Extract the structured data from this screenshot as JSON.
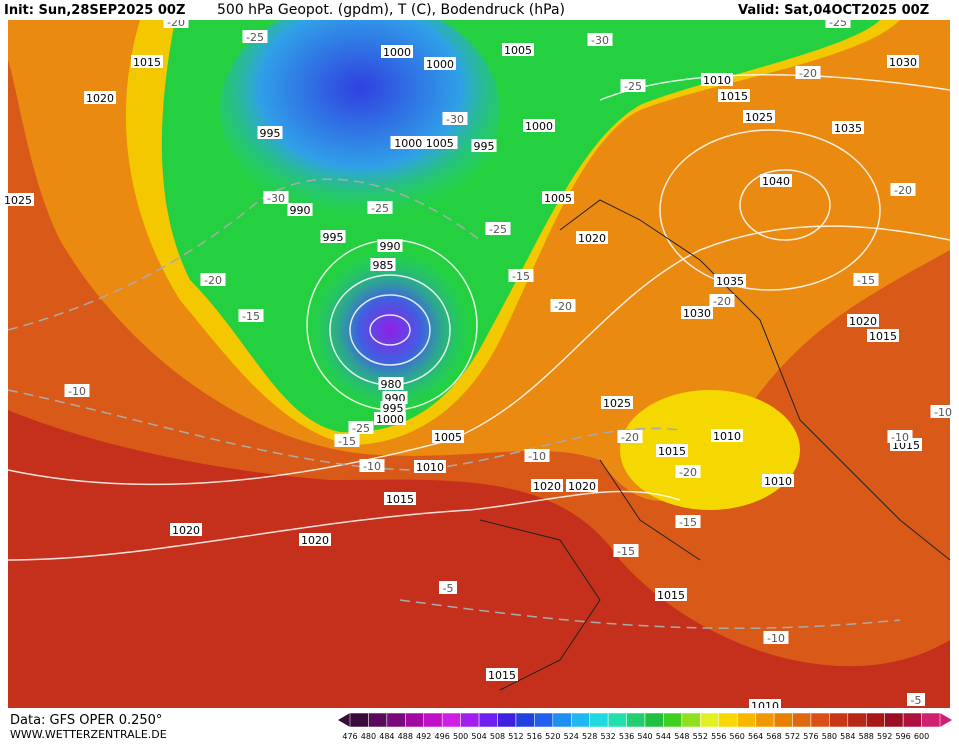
{
  "header": {
    "init": "Init: Sun,28SEP2025 00Z",
    "title": "500 hPa Geopot. (gpdm), T (C), Bodendruck (hPa)",
    "valid": "Valid: Sat,04OCT2025 00Z"
  },
  "footer": {
    "data": "Data: GFS OPER 0.250°",
    "site": "WWW.WETTERZENTRALE.DE"
  },
  "isobar_labels": [
    "1015",
    "1020",
    "1025",
    "995",
    "990",
    "995",
    "1000",
    "1000",
    "1005",
    "1010",
    "1015",
    "1025",
    "1035",
    "1030",
    "1040",
    "1000",
    "995",
    "1000 1005",
    "1005",
    "1020",
    "990",
    "985",
    "1035",
    "1030",
    "1020",
    "1015",
    "980",
    "990",
    "995",
    "1000",
    "1005",
    "1010",
    "1015",
    "1020",
    "1020",
    "1020",
    "1020",
    "1025",
    "1015",
    "1010",
    "1010",
    "1015",
    "1015",
    "1015",
    "1010"
  ],
  "temperature_labels": [
    "-20",
    "-25",
    "-30",
    "-25",
    "-20",
    "-25",
    "-30",
    "-30",
    "-25",
    "-25",
    "-20",
    "-15",
    "-15",
    "-20",
    "-15",
    "-20",
    "-20",
    "-10",
    "-15",
    "-25",
    "-10",
    "-10",
    "-20",
    "-20",
    "-15",
    "-15",
    "-5",
    "-10",
    "-10",
    "-5",
    "-10"
  ],
  "colorbar": {
    "ticks": [
      476,
      480,
      484,
      488,
      492,
      496,
      500,
      504,
      508,
      512,
      516,
      520,
      524,
      528,
      532,
      536,
      540,
      544,
      548,
      552,
      556,
      560,
      564,
      568,
      572,
      576,
      580,
      584,
      588,
      592,
      596,
      600
    ],
    "colors": [
      "#3a0a3a",
      "#5a0a5a",
      "#7a0a7a",
      "#a00aa0",
      "#c010c8",
      "#d020e8",
      "#a020f0",
      "#7020f0",
      "#4020e0",
      "#2040e0",
      "#2060f0",
      "#2090f0",
      "#20b8f0",
      "#20d8e0",
      "#20e0b0",
      "#20d070",
      "#20c040",
      "#40d020",
      "#90e020",
      "#e0f020",
      "#f8d800",
      "#f8b800",
      "#f09800",
      "#e88000",
      "#e06810",
      "#d85018",
      "#c83818",
      "#b82818",
      "#a81818",
      "#981020",
      "#b01040",
      "#d02070"
    ]
  }
}
